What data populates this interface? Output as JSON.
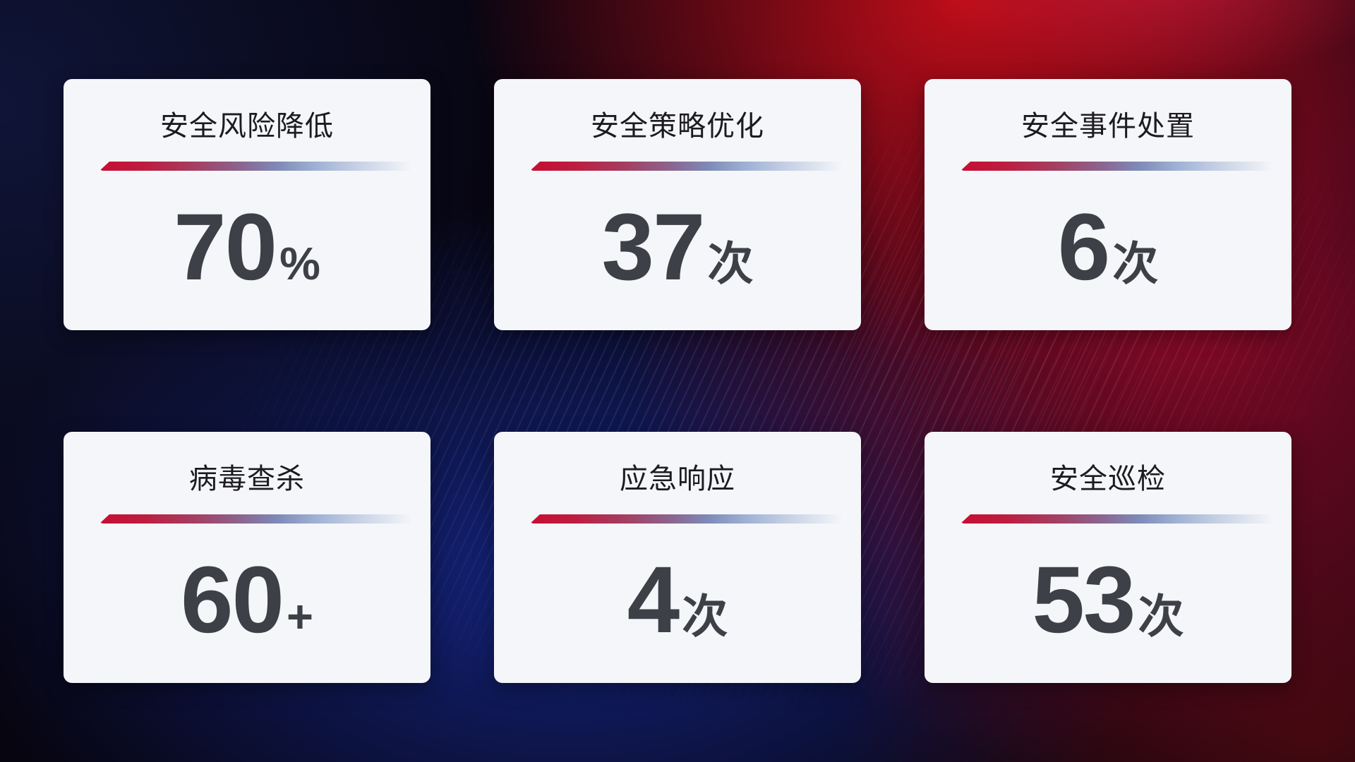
{
  "colors": {
    "card_background": "#f5f6f9",
    "title_text": "#1b1b20",
    "value_text": "#3d4046",
    "accent_line_red": "#c60e33",
    "accent_line_blue": "#9fb2d4",
    "background_red": "#c40d18",
    "background_blue": "#152687",
    "background_navy": "#101638"
  },
  "cards": [
    {
      "title": "安全风险降低",
      "value": "70",
      "unit": "%"
    },
    {
      "title": "安全策略优化",
      "value": "37",
      "unit": "次"
    },
    {
      "title": "安全事件处置",
      "value": "6",
      "unit": "次"
    },
    {
      "title": "病毒查杀",
      "value": "60",
      "unit": "+"
    },
    {
      "title": "应急响应",
      "value": "4",
      "unit": "次"
    },
    {
      "title": "安全巡检",
      "value": "53",
      "unit": "次"
    }
  ]
}
